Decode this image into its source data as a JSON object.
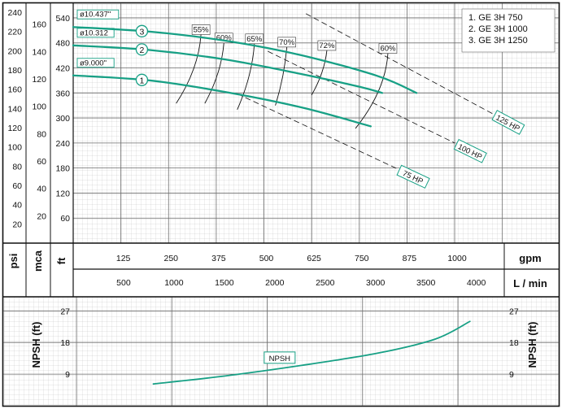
{
  "chart_data": [
    {
      "type": "line",
      "title": "",
      "legend": [
        "1. GE 3H 750",
        "2. GE 3H 1000",
        "3. GE 3H 1250"
      ],
      "legend_position": "top-right",
      "grid": true,
      "x_axis_gpm": {
        "label": "gpm",
        "ticks": [
          125,
          250,
          375,
          500,
          625,
          750,
          875,
          1000
        ],
        "range": [
          0,
          1130
        ]
      },
      "x_axis_lmin": {
        "label": "L / min",
        "ticks": [
          500,
          1000,
          1500,
          2000,
          2500,
          3000,
          3500,
          4000
        ]
      },
      "y_axis_ft": {
        "label": "ft",
        "ticks": [
          60,
          120,
          180,
          240,
          300,
          360,
          420,
          480,
          540
        ],
        "range": [
          0,
          575
        ]
      },
      "y_axis_mca": {
        "label": "mca",
        "ticks": [
          20,
          40,
          60,
          80,
          100,
          120,
          140,
          160
        ]
      },
      "y_axis_psi": {
        "label": "psi",
        "ticks": [
          20,
          40,
          60,
          80,
          100,
          120,
          140,
          160,
          180,
          200,
          220,
          240
        ]
      },
      "series": [
        {
          "name": "1",
          "impeller": "ø9.000\"",
          "points": [
            [
              0,
              402
            ],
            [
              200,
              390
            ],
            [
              400,
              362
            ],
            [
              600,
              325
            ],
            [
              780,
              280
            ]
          ]
        },
        {
          "name": "2",
          "impeller": "ø10.312",
          "points": [
            [
              0,
              474
            ],
            [
              200,
              463
            ],
            [
              400,
              440
            ],
            [
              600,
              405
            ],
            [
              750,
              375
            ],
            [
              810,
              360
            ]
          ]
        },
        {
          "name": "3",
          "impeller": "ø10.437\"",
          "points": [
            [
              0,
              518
            ],
            [
              200,
              507
            ],
            [
              400,
              485
            ],
            [
              600,
              450
            ],
            [
              800,
              400
            ],
            [
              900,
              360
            ]
          ]
        }
      ],
      "efficiency_lines": [
        {
          "label": "55%",
          "points": [
            [
              335,
              500
            ],
            [
              270,
              335
            ]
          ]
        },
        {
          "label": "60%",
          "points": [
            [
              395,
              480
            ],
            [
              345,
              335
            ]
          ]
        },
        {
          "label": "65%",
          "points": [
            [
              475,
              478
            ],
            [
              430,
              320
            ]
          ]
        },
        {
          "label": "70%",
          "points": [
            [
              560,
              470
            ],
            [
              530,
              330
            ]
          ]
        },
        {
          "label": "72%",
          "points": [
            [
              665,
              462
            ],
            [
              625,
              355
            ]
          ]
        },
        {
          "label": "60%",
          "points": [
            [
              825,
              455
            ],
            [
              740,
              275
            ]
          ]
        }
      ],
      "power_lines": [
        {
          "label": "75 HP",
          "points": [
            [
              430,
              358
            ],
            [
              850,
              178
            ]
          ]
        },
        {
          "label": "100 HP",
          "points": [
            [
              510,
              460
            ],
            [
              1000,
              240
            ]
          ]
        },
        {
          "label": "125 HP",
          "points": [
            [
              610,
              550
            ],
            [
              1100,
              310
            ]
          ]
        }
      ]
    },
    {
      "type": "line",
      "title": "",
      "y_axis": {
        "label": "NPSH (ft)",
        "ticks": [
          9,
          18,
          27
        ],
        "range": [
          0,
          31
        ]
      },
      "series": [
        {
          "name": "NPSH",
          "points": [
            [
              210,
              6.2
            ],
            [
              400,
              8.5
            ],
            [
              600,
              11.5
            ],
            [
              800,
              15.0
            ],
            [
              950,
              19.0
            ],
            [
              1040,
              24.0
            ]
          ]
        }
      ]
    }
  ]
}
